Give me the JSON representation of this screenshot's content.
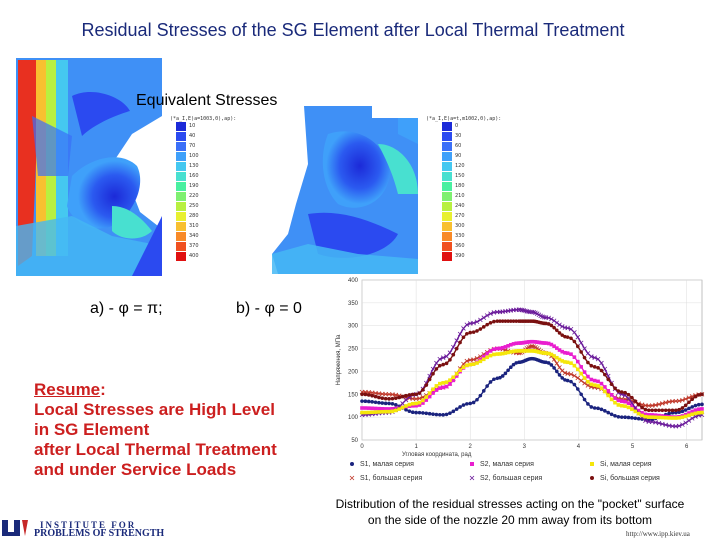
{
  "slide": {
    "title": "Residual Stresses of the SG Element after Local Thermal Treatment",
    "subtitle": "Equivalent Stresses",
    "label_a": "a) - φ = π;",
    "label_b": "b) - φ = 0",
    "resume_heading": "Resume",
    "resume_colon": ":",
    "resume_lines": [
      "Local Stresses are High Level",
      "in SG Element",
      "after Local Thermal Treatment",
      "and under Service Loads"
    ],
    "caption_lines": [
      "Distribution of the residual stresses acting on the \"pocket\" surface",
      "on the side of the nozzle 20 mm away from its bottom"
    ],
    "institute_line1": "INSTITUTE FOR",
    "institute_line2": "PROBLEMS OF STRENGTH",
    "url": "http://www.ipp.kiev.ua"
  },
  "fem_left": {
    "legend_title": "(*a_I,E)a=1003,0),ap):",
    "scale_labels": [
      "10",
      "40",
      "70",
      "100",
      "130",
      "160",
      "190",
      "220",
      "250",
      "280",
      "310",
      "340",
      "370",
      "400"
    ],
    "scale_colors": [
      "#1c2ad8",
      "#2b4af0",
      "#3b6ff8",
      "#3fa0fa",
      "#45c8f0",
      "#48e0d0",
      "#48f0a0",
      "#7ef070",
      "#b8f040",
      "#e8f030",
      "#f8c030",
      "#f88a28",
      "#f05020",
      "#e01010"
    ]
  },
  "fem_right": {
    "legend_title": "(*a_I,E)a=t,m1002,0),ap):",
    "scale_labels": [
      "0",
      "30",
      "60",
      "90",
      "120",
      "150",
      "180",
      "210",
      "240",
      "270",
      "300",
      "330",
      "360",
      "390"
    ],
    "scale_colors": [
      "#1c2ad8",
      "#2b4af0",
      "#3b6ff8",
      "#3fa0fa",
      "#45c8f0",
      "#48e0d0",
      "#48f0a0",
      "#7ef070",
      "#b8f040",
      "#e8f030",
      "#f8c030",
      "#f88a28",
      "#f05020",
      "#e01010"
    ]
  },
  "chart_data": {
    "type": "line",
    "title": "",
    "xlabel": "Угловая координата, рад",
    "ylabel": "Напряжения, МПа",
    "xlim": [
      0,
      6.283
    ],
    "ylim": [
      50,
      400
    ],
    "xticks": [
      0,
      1,
      2,
      3,
      4,
      5,
      6
    ],
    "yticks": [
      50,
      100,
      150,
      200,
      250,
      300,
      350,
      400
    ],
    "series": [
      {
        "name": "S1, малая серия",
        "color": "#1a237e",
        "marker": "dot",
        "x": [
          0,
          0.5,
          1,
          1.5,
          2,
          2.5,
          2.9,
          3.14,
          3.4,
          3.8,
          4.3,
          4.8,
          5.3,
          5.8,
          6.283
        ],
        "y": [
          135,
          130,
          110,
          105,
          130,
          185,
          220,
          228,
          220,
          180,
          120,
          100,
          95,
          110,
          128
        ]
      },
      {
        "name": "S1, большая серия",
        "color": "#c0392b",
        "marker": "x",
        "x": [
          0,
          0.5,
          1,
          1.5,
          2,
          2.5,
          2.9,
          3.14,
          3.4,
          3.8,
          4.3,
          4.8,
          5.3,
          5.8,
          6.283
        ],
        "y": [
          155,
          150,
          140,
          165,
          225,
          250,
          240,
          255,
          240,
          195,
          165,
          140,
          125,
          135,
          150
        ]
      },
      {
        "name": "S2, малая серия",
        "color": "#e91ecf",
        "marker": "square",
        "x": [
          0,
          0.5,
          1,
          1.5,
          2,
          2.5,
          2.9,
          3.14,
          3.4,
          3.8,
          4.3,
          4.8,
          5.3,
          5.8,
          6.283
        ],
        "y": [
          120,
          118,
          125,
          165,
          215,
          250,
          262,
          265,
          262,
          240,
          180,
          135,
          105,
          100,
          118
        ]
      },
      {
        "name": "S2, большая серия",
        "color": "#6a1a9a",
        "marker": "x",
        "x": [
          0,
          0.5,
          1,
          1.5,
          2,
          2.5,
          2.9,
          3.14,
          3.4,
          3.8,
          4.3,
          4.8,
          5.3,
          5.8,
          6.283
        ],
        "y": [
          105,
          110,
          150,
          230,
          305,
          330,
          335,
          330,
          318,
          295,
          230,
          150,
          90,
          80,
          105
        ]
      },
      {
        "name": "Si, малая серия",
        "color": "#f5e60a",
        "marker": "square",
        "x": [
          0,
          0.5,
          1,
          1.5,
          2,
          2.5,
          2.9,
          3.14,
          3.4,
          3.8,
          4.3,
          4.8,
          5.3,
          5.8,
          6.283
        ],
        "y": [
          110,
          112,
          130,
          175,
          215,
          238,
          245,
          245,
          240,
          220,
          170,
          125,
          100,
          98,
          110
        ]
      },
      {
        "name": "Si, большая серия",
        "color": "#7a1010",
        "marker": "dot",
        "x": [
          0,
          0.5,
          1,
          1.5,
          2,
          2.5,
          2.9,
          3.14,
          3.4,
          3.8,
          4.3,
          4.8,
          5.3,
          5.8,
          6.283
        ],
        "y": [
          150,
          140,
          150,
          215,
          285,
          310,
          310,
          310,
          305,
          275,
          210,
          155,
          115,
          115,
          150
        ]
      }
    ]
  }
}
